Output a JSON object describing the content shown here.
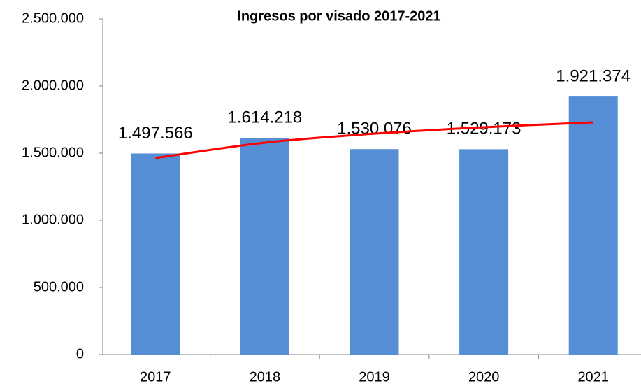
{
  "chart_data": {
    "type": "bar",
    "title": "Ingresos por visado 2017-2021",
    "categories": [
      "2017",
      "2018",
      "2019",
      "2020",
      "2021"
    ],
    "values": [
      1497566,
      1614218,
      1530076,
      1529173,
      1921374
    ],
    "value_labels": [
      "1.497.566",
      "1.614.218",
      "1.530.076",
      "1.529.173",
      "1.921.374"
    ],
    "color": "#558ed5",
    "trendline": {
      "color": "#ff0000",
      "values": [
        1464000,
        1578000,
        1645000,
        1693000,
        1729000
      ]
    },
    "ylim": [
      0,
      2500000
    ],
    "yticks": [
      0,
      {
        "value": 500000,
        "label": "500.000"
      },
      {
        "value": 1000000,
        "label": "1.000.000"
      },
      {
        "value": 1500000,
        "label": "1.500.000"
      },
      {
        "value": 2000000,
        "label": "2.000.000"
      },
      {
        "value": 2500000,
        "label": "2.500.000"
      }
    ],
    "grid": false
  }
}
